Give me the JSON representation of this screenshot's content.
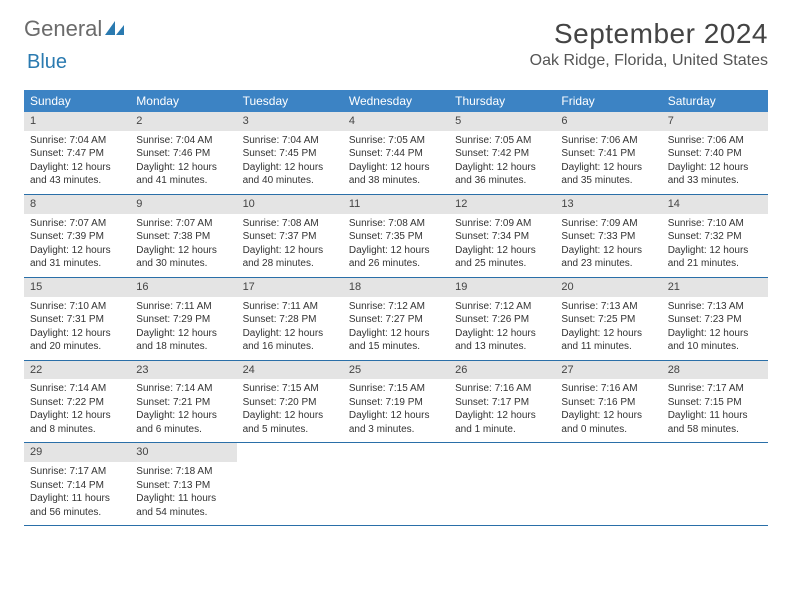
{
  "logo": {
    "first": "General",
    "second": "Blue",
    "accent_fill": "#2a7ab0"
  },
  "month_title": "September 2024",
  "location": "Oak Ridge, Florida, United States",
  "colors": {
    "header_bg": "#3c83c4",
    "header_text": "#ffffff",
    "daynum_bg": "#e4e4e4",
    "row_border": "#2a6fa8",
    "text": "#333333",
    "title_text": "#444444"
  },
  "day_names": [
    "Sunday",
    "Monday",
    "Tuesday",
    "Wednesday",
    "Thursday",
    "Friday",
    "Saturday"
  ],
  "weeks": [
    [
      {
        "n": "1",
        "sr": "Sunrise: 7:04 AM",
        "ss": "Sunset: 7:47 PM",
        "dl1": "Daylight: 12 hours",
        "dl2": "and 43 minutes."
      },
      {
        "n": "2",
        "sr": "Sunrise: 7:04 AM",
        "ss": "Sunset: 7:46 PM",
        "dl1": "Daylight: 12 hours",
        "dl2": "and 41 minutes."
      },
      {
        "n": "3",
        "sr": "Sunrise: 7:04 AM",
        "ss": "Sunset: 7:45 PM",
        "dl1": "Daylight: 12 hours",
        "dl2": "and 40 minutes."
      },
      {
        "n": "4",
        "sr": "Sunrise: 7:05 AM",
        "ss": "Sunset: 7:44 PM",
        "dl1": "Daylight: 12 hours",
        "dl2": "and 38 minutes."
      },
      {
        "n": "5",
        "sr": "Sunrise: 7:05 AM",
        "ss": "Sunset: 7:42 PM",
        "dl1": "Daylight: 12 hours",
        "dl2": "and 36 minutes."
      },
      {
        "n": "6",
        "sr": "Sunrise: 7:06 AM",
        "ss": "Sunset: 7:41 PM",
        "dl1": "Daylight: 12 hours",
        "dl2": "and 35 minutes."
      },
      {
        "n": "7",
        "sr": "Sunrise: 7:06 AM",
        "ss": "Sunset: 7:40 PM",
        "dl1": "Daylight: 12 hours",
        "dl2": "and 33 minutes."
      }
    ],
    [
      {
        "n": "8",
        "sr": "Sunrise: 7:07 AM",
        "ss": "Sunset: 7:39 PM",
        "dl1": "Daylight: 12 hours",
        "dl2": "and 31 minutes."
      },
      {
        "n": "9",
        "sr": "Sunrise: 7:07 AM",
        "ss": "Sunset: 7:38 PM",
        "dl1": "Daylight: 12 hours",
        "dl2": "and 30 minutes."
      },
      {
        "n": "10",
        "sr": "Sunrise: 7:08 AM",
        "ss": "Sunset: 7:37 PM",
        "dl1": "Daylight: 12 hours",
        "dl2": "and 28 minutes."
      },
      {
        "n": "11",
        "sr": "Sunrise: 7:08 AM",
        "ss": "Sunset: 7:35 PM",
        "dl1": "Daylight: 12 hours",
        "dl2": "and 26 minutes."
      },
      {
        "n": "12",
        "sr": "Sunrise: 7:09 AM",
        "ss": "Sunset: 7:34 PM",
        "dl1": "Daylight: 12 hours",
        "dl2": "and 25 minutes."
      },
      {
        "n": "13",
        "sr": "Sunrise: 7:09 AM",
        "ss": "Sunset: 7:33 PM",
        "dl1": "Daylight: 12 hours",
        "dl2": "and 23 minutes."
      },
      {
        "n": "14",
        "sr": "Sunrise: 7:10 AM",
        "ss": "Sunset: 7:32 PM",
        "dl1": "Daylight: 12 hours",
        "dl2": "and 21 minutes."
      }
    ],
    [
      {
        "n": "15",
        "sr": "Sunrise: 7:10 AM",
        "ss": "Sunset: 7:31 PM",
        "dl1": "Daylight: 12 hours",
        "dl2": "and 20 minutes."
      },
      {
        "n": "16",
        "sr": "Sunrise: 7:11 AM",
        "ss": "Sunset: 7:29 PM",
        "dl1": "Daylight: 12 hours",
        "dl2": "and 18 minutes."
      },
      {
        "n": "17",
        "sr": "Sunrise: 7:11 AM",
        "ss": "Sunset: 7:28 PM",
        "dl1": "Daylight: 12 hours",
        "dl2": "and 16 minutes."
      },
      {
        "n": "18",
        "sr": "Sunrise: 7:12 AM",
        "ss": "Sunset: 7:27 PM",
        "dl1": "Daylight: 12 hours",
        "dl2": "and 15 minutes."
      },
      {
        "n": "19",
        "sr": "Sunrise: 7:12 AM",
        "ss": "Sunset: 7:26 PM",
        "dl1": "Daylight: 12 hours",
        "dl2": "and 13 minutes."
      },
      {
        "n": "20",
        "sr": "Sunrise: 7:13 AM",
        "ss": "Sunset: 7:25 PM",
        "dl1": "Daylight: 12 hours",
        "dl2": "and 11 minutes."
      },
      {
        "n": "21",
        "sr": "Sunrise: 7:13 AM",
        "ss": "Sunset: 7:23 PM",
        "dl1": "Daylight: 12 hours",
        "dl2": "and 10 minutes."
      }
    ],
    [
      {
        "n": "22",
        "sr": "Sunrise: 7:14 AM",
        "ss": "Sunset: 7:22 PM",
        "dl1": "Daylight: 12 hours",
        "dl2": "and 8 minutes."
      },
      {
        "n": "23",
        "sr": "Sunrise: 7:14 AM",
        "ss": "Sunset: 7:21 PM",
        "dl1": "Daylight: 12 hours",
        "dl2": "and 6 minutes."
      },
      {
        "n": "24",
        "sr": "Sunrise: 7:15 AM",
        "ss": "Sunset: 7:20 PM",
        "dl1": "Daylight: 12 hours",
        "dl2": "and 5 minutes."
      },
      {
        "n": "25",
        "sr": "Sunrise: 7:15 AM",
        "ss": "Sunset: 7:19 PM",
        "dl1": "Daylight: 12 hours",
        "dl2": "and 3 minutes."
      },
      {
        "n": "26",
        "sr": "Sunrise: 7:16 AM",
        "ss": "Sunset: 7:17 PM",
        "dl1": "Daylight: 12 hours",
        "dl2": "and 1 minute."
      },
      {
        "n": "27",
        "sr": "Sunrise: 7:16 AM",
        "ss": "Sunset: 7:16 PM",
        "dl1": "Daylight: 12 hours",
        "dl2": "and 0 minutes."
      },
      {
        "n": "28",
        "sr": "Sunrise: 7:17 AM",
        "ss": "Sunset: 7:15 PM",
        "dl1": "Daylight: 11 hours",
        "dl2": "and 58 minutes."
      }
    ],
    [
      {
        "n": "29",
        "sr": "Sunrise: 7:17 AM",
        "ss": "Sunset: 7:14 PM",
        "dl1": "Daylight: 11 hours",
        "dl2": "and 56 minutes."
      },
      {
        "n": "30",
        "sr": "Sunrise: 7:18 AM",
        "ss": "Sunset: 7:13 PM",
        "dl1": "Daylight: 11 hours",
        "dl2": "and 54 minutes."
      },
      null,
      null,
      null,
      null,
      null
    ]
  ]
}
